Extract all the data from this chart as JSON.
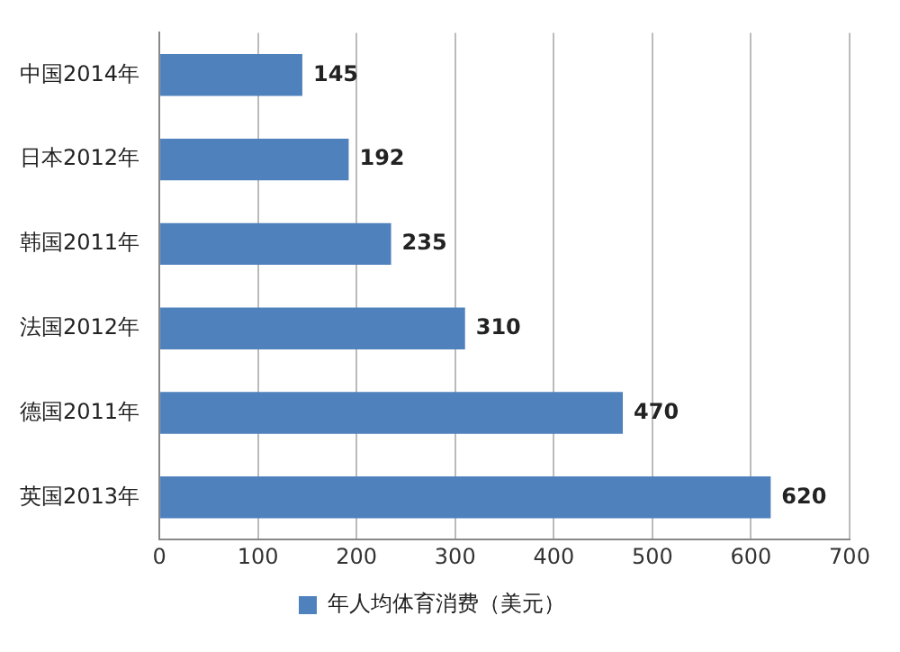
{
  "chart_data": {
    "type": "bar",
    "orientation": "horizontal",
    "categories": [
      "中国2014年",
      "日本2012年",
      "韩国2011年",
      "法国2012年",
      "德国2011年",
      "英国2013年"
    ],
    "series": [
      {
        "name": "年人均体育消费（美元）",
        "color": "#4f81bd",
        "values": [
          145,
          192,
          235,
          310,
          470,
          620
        ]
      }
    ],
    "xlim": [
      0,
      700
    ],
    "xticks": [
      0,
      100,
      200,
      300,
      400,
      500,
      600,
      700
    ],
    "grid": "x",
    "legend": "bottom",
    "data_labels": true
  }
}
